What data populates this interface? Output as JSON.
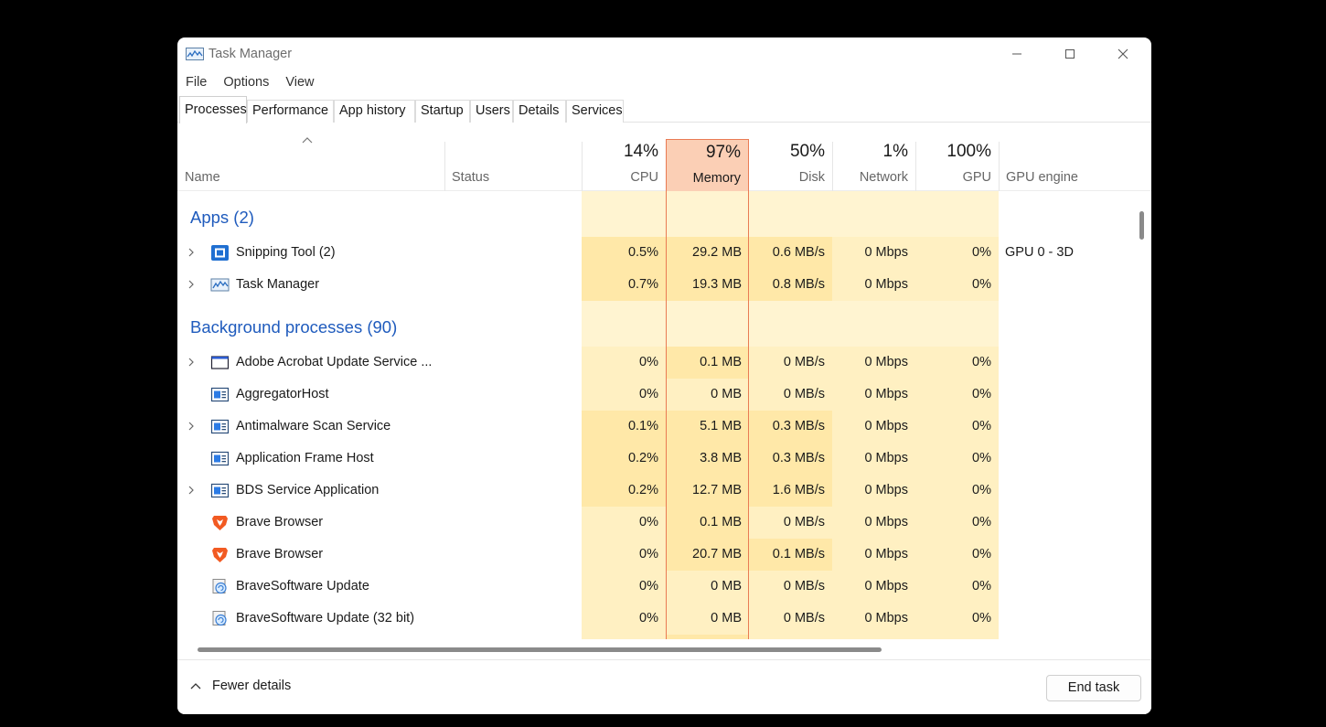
{
  "window": {
    "title": "Task Manager"
  },
  "menu": [
    "File",
    "Options",
    "View"
  ],
  "tabs": [
    "Processes",
    "Performance",
    "App history",
    "Startup",
    "Users",
    "Details",
    "Services"
  ],
  "active_tab": "Processes",
  "columns": {
    "name": "Name",
    "status": "Status",
    "cpu": {
      "pct": "14%",
      "label": "CPU"
    },
    "memory": {
      "pct": "97%",
      "label": "Memory"
    },
    "disk": {
      "pct": "50%",
      "label": "Disk"
    },
    "network": {
      "pct": "1%",
      "label": "Network"
    },
    "gpu": {
      "pct": "100%",
      "label": "GPU"
    },
    "gpu_engine": "GPU engine"
  },
  "groups": {
    "apps": "Apps (2)",
    "background": "Background processes (90)"
  },
  "apps": [
    {
      "name": "Snipping Tool (2)",
      "icon": "snipping-tool-icon",
      "expandable": true,
      "cpu": "0.5%",
      "memory": "29.2 MB",
      "disk": "0.6 MB/s",
      "network": "0 Mbps",
      "gpu": "0%",
      "gpu_engine": "GPU 0 - 3D"
    },
    {
      "name": "Task Manager",
      "icon": "task-manager-icon",
      "expandable": true,
      "cpu": "0.7%",
      "memory": "19.3 MB",
      "disk": "0.8 MB/s",
      "network": "0 Mbps",
      "gpu": "0%",
      "gpu_engine": ""
    }
  ],
  "background": [
    {
      "name": "Adobe Acrobat Update Service ...",
      "icon": "window-icon",
      "expandable": true,
      "cpu": "0%",
      "memory": "0.1 MB",
      "disk": "0 MB/s",
      "network": "0 Mbps",
      "gpu": "0%",
      "gpu_engine": ""
    },
    {
      "name": "AggregatorHost",
      "icon": "service-icon",
      "expandable": false,
      "cpu": "0%",
      "memory": "0 MB",
      "disk": "0 MB/s",
      "network": "0 Mbps",
      "gpu": "0%",
      "gpu_engine": ""
    },
    {
      "name": "Antimalware Scan Service",
      "icon": "service-icon",
      "expandable": true,
      "cpu": "0.1%",
      "memory": "5.1 MB",
      "disk": "0.3 MB/s",
      "network": "0 Mbps",
      "gpu": "0%",
      "gpu_engine": ""
    },
    {
      "name": "Application Frame Host",
      "icon": "service-icon",
      "expandable": false,
      "cpu": "0.2%",
      "memory": "3.8 MB",
      "disk": "0.3 MB/s",
      "network": "0 Mbps",
      "gpu": "0%",
      "gpu_engine": ""
    },
    {
      "name": "BDS Service Application",
      "icon": "service-icon",
      "expandable": true,
      "cpu": "0.2%",
      "memory": "12.7 MB",
      "disk": "1.6 MB/s",
      "network": "0 Mbps",
      "gpu": "0%",
      "gpu_engine": ""
    },
    {
      "name": "Brave Browser",
      "icon": "brave-icon",
      "expandable": false,
      "cpu": "0%",
      "memory": "0.1 MB",
      "disk": "0 MB/s",
      "network": "0 Mbps",
      "gpu": "0%",
      "gpu_engine": ""
    },
    {
      "name": "Brave Browser",
      "icon": "brave-icon",
      "expandable": false,
      "cpu": "0%",
      "memory": "20.7 MB",
      "disk": "0.1 MB/s",
      "network": "0 Mbps",
      "gpu": "0%",
      "gpu_engine": ""
    },
    {
      "name": "BraveSoftware Update",
      "icon": "updater-icon",
      "expandable": false,
      "cpu": "0%",
      "memory": "0 MB",
      "disk": "0 MB/s",
      "network": "0 Mbps",
      "gpu": "0%",
      "gpu_engine": ""
    },
    {
      "name": "BraveSoftware Update (32 bit)",
      "icon": "updater-icon",
      "expandable": false,
      "cpu": "0%",
      "memory": "0 MB",
      "disk": "0 MB/s",
      "network": "0 Mbps",
      "gpu": "0%",
      "gpu_engine": ""
    }
  ],
  "footer": {
    "fewer_details": "Fewer details",
    "end_task": "End task"
  },
  "colors": {
    "accent": "#1f5bbd",
    "heat_light": "#fff4d1",
    "heat_mid": "#fff0c2",
    "heat_strong": "#ffe8a8",
    "memory_header": "#fbcfb5",
    "memory_border": "#e97b54"
  }
}
